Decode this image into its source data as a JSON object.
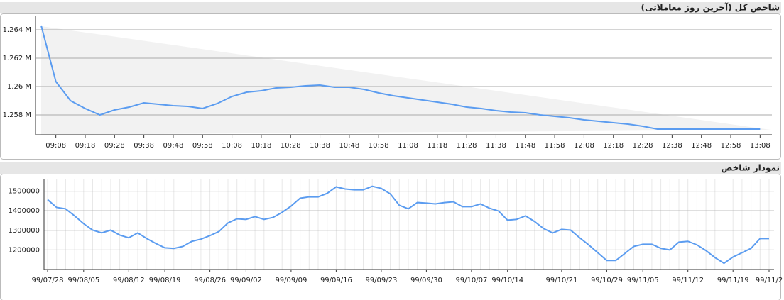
{
  "chart_data": [
    {
      "type": "line",
      "title": "شاخص کل (آخرین روز معاملاتی)",
      "color": "#5b9cf0",
      "categories": [
        null,
        "09:08",
        null,
        "09:18",
        null,
        "09:28",
        null,
        "09:38",
        null,
        "09:48",
        null,
        "09:58",
        null,
        "10:08",
        null,
        "10:18",
        null,
        "10:28",
        null,
        "10:38",
        null,
        "10:48",
        null,
        "10:58",
        null,
        "11:08",
        null,
        "11:18",
        null,
        "11:28",
        null,
        "11:38",
        null,
        "11:48",
        null,
        "11:58",
        null,
        "12:08",
        null,
        "12:18",
        null,
        "12:28",
        null,
        "12:38",
        null,
        "12:48",
        null,
        "12:58",
        null,
        "13:08"
      ],
      "values": [
        1264300,
        1260350,
        1259000,
        1258450,
        1258000,
        1258350,
        1258550,
        1258850,
        1258750,
        1258650,
        1258600,
        1258450,
        1258800,
        1259300,
        1259600,
        1259700,
        1259900,
        1259950,
        1260050,
        1260100,
        1259950,
        1259950,
        1259800,
        1259550,
        1259350,
        1259200,
        1259050,
        1258900,
        1258750,
        1258550,
        1258450,
        1258300,
        1258200,
        1258150,
        1258000,
        1257900,
        1257800,
        1257650,
        1257550,
        1257450,
        1257350,
        1257200,
        1257000,
        1257000,
        1257000,
        1257000,
        1257000,
        1257000,
        1257000,
        1257000
      ],
      "ylim": [
        1256600,
        1265000
      ],
      "yticks": [
        {
          "value": 1258000,
          "label": "1.258 M"
        },
        {
          "value": 1260000,
          "label": "1.26 M"
        },
        {
          "value": 1262000,
          "label": "1.262 M"
        },
        {
          "value": 1264000,
          "label": "1.264 M"
        }
      ],
      "grid": true
    },
    {
      "type": "line",
      "title": "نمودار شاخص",
      "color": "#5b9cf0",
      "categories": [
        "99/07/28",
        null,
        null,
        null,
        "99/08/05",
        null,
        null,
        null,
        null,
        "99/08/12",
        null,
        null,
        null,
        "99/08/19",
        null,
        null,
        null,
        null,
        "99/08/26",
        null,
        null,
        null,
        "99/09/02",
        null,
        null,
        null,
        null,
        "99/09/09",
        null,
        null,
        null,
        null,
        "99/09/16",
        null,
        null,
        null,
        null,
        "99/09/23",
        null,
        null,
        null,
        null,
        "99/09/30",
        null,
        null,
        null,
        null,
        "99/10/07",
        null,
        null,
        null,
        "99/10/14",
        null,
        null,
        null,
        null,
        null,
        "99/10/21",
        null,
        null,
        null,
        null,
        "99/10/29",
        null,
        null,
        null,
        "99/11/05",
        null,
        null,
        null,
        null,
        "99/11/12",
        null,
        null,
        null,
        null,
        "99/11/19",
        null,
        null,
        null,
        "99/11/2"
      ],
      "values": [
        1457000,
        1417000,
        1410000,
        1374000,
        1334000,
        1301000,
        1287000,
        1301000,
        1276000,
        1262000,
        1287000,
        1258000,
        1233000,
        1211000,
        1208000,
        1218000,
        1244000,
        1255000,
        1273000,
        1294000,
        1338000,
        1359000,
        1356000,
        1370000,
        1356000,
        1366000,
        1392000,
        1424000,
        1464000,
        1471000,
        1471000,
        1489000,
        1522000,
        1511000,
        1507000,
        1507000,
        1525000,
        1514000,
        1486000,
        1428000,
        1410000,
        1442000,
        1439000,
        1435000,
        1442000,
        1446000,
        1421000,
        1421000,
        1435000,
        1413000,
        1399000,
        1352000,
        1356000,
        1374000,
        1345000,
        1309000,
        1287000,
        1305000,
        1301000,
        1262000,
        1226000,
        1186000,
        1146000,
        1146000,
        1182000,
        1218000,
        1229000,
        1229000,
        1208000,
        1200000,
        1240000,
        1244000,
        1226000,
        1197000,
        1161000,
        1132000,
        1164000,
        1186000,
        1208000,
        1258000,
        1258000
      ],
      "ylim": [
        1100000,
        1560000
      ],
      "yticks": [
        1200000,
        1300000,
        1400000,
        1500000
      ],
      "grid": true
    }
  ]
}
